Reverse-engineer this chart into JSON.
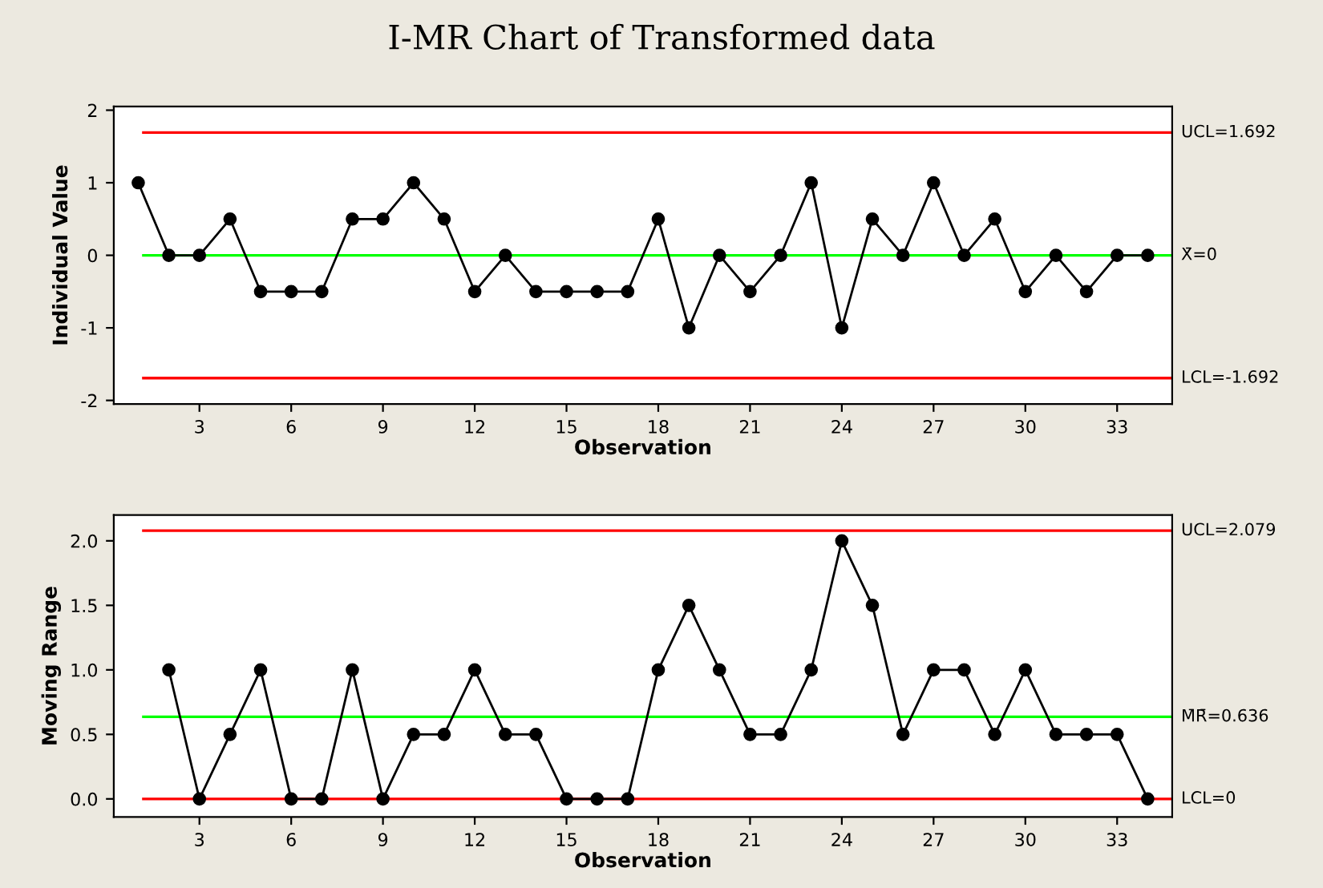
{
  "chart_data": [
    {
      "type": "line",
      "title": "I-MR Chart of Transformed data",
      "xlabel": "Observation",
      "ylabel": "Individual Value",
      "x": [
        1,
        2,
        3,
        4,
        5,
        6,
        7,
        8,
        9,
        10,
        11,
        12,
        13,
        14,
        15,
        16,
        17,
        18,
        19,
        20,
        21,
        22,
        23,
        24,
        25,
        26,
        27,
        28,
        29,
        30,
        31,
        32,
        33,
        34
      ],
      "series": [
        {
          "color": "#000000",
          "values": [
            1,
            0,
            0,
            0.5,
            -0.5,
            -0.5,
            -0.5,
            0.5,
            0.5,
            1,
            0.5,
            -0.5,
            0,
            -0.5,
            -0.5,
            -0.5,
            -0.5,
            0.5,
            -1,
            0,
            -0.5,
            0,
            1,
            -1,
            0.5,
            0,
            1,
            0,
            0.5,
            -0.5,
            0,
            -0.5,
            0,
            0
          ]
        }
      ],
      "marker": "circle",
      "line_style": "solid",
      "xlim": [
        0.2,
        34.8
      ],
      "xticks": [
        3,
        6,
        9,
        12,
        15,
        18,
        21,
        24,
        27,
        30,
        33
      ],
      "ylim": [
        -2.05,
        2.05
      ],
      "yticks": [
        -2,
        -1,
        0,
        1,
        2
      ],
      "ref_lines": [
        {
          "axis": "y",
          "value": 1.692,
          "label": "UCL=1.692",
          "color": "#ff0000"
        },
        {
          "axis": "y",
          "value": 0,
          "label": "X̄=0",
          "color": "#00ff00"
        },
        {
          "axis": "y",
          "value": -1.692,
          "label": "LCL=-1.692",
          "color": "#ff0000"
        }
      ],
      "grid": false,
      "legend": false
    },
    {
      "type": "line",
      "xlabel": "Observation",
      "ylabel": "Moving Range",
      "x": [
        2,
        3,
        4,
        5,
        6,
        7,
        8,
        9,
        10,
        11,
        12,
        13,
        14,
        15,
        16,
        17,
        18,
        19,
        20,
        21,
        22,
        23,
        24,
        25,
        26,
        27,
        28,
        29,
        30,
        31,
        32,
        33,
        34
      ],
      "series": [
        {
          "color": "#000000",
          "values": [
            1,
            0,
            0.5,
            1,
            0,
            0,
            1,
            0,
            0.5,
            0.5,
            1,
            0.5,
            0.5,
            0,
            0,
            0,
            1,
            1.5,
            1,
            0.5,
            0.5,
            1,
            2,
            1.5,
            0.5,
            1,
            1,
            0.5,
            1,
            0.5,
            0.5,
            0.5,
            0
          ]
        }
      ],
      "marker": "circle",
      "line_style": "solid",
      "xlim": [
        0.2,
        34.8
      ],
      "xticks": [
        3,
        6,
        9,
        12,
        15,
        18,
        21,
        24,
        27,
        30,
        33
      ],
      "ylim": [
        -0.14,
        2.2
      ],
      "yticks": [
        {
          "value": 0,
          "label": "0.0"
        },
        {
          "value": 0.5,
          "label": "0.5"
        },
        {
          "value": 1,
          "label": "1.0"
        },
        {
          "value": 1.5,
          "label": "1.5"
        },
        {
          "value": 2,
          "label": "2.0"
        }
      ],
      "ref_lines": [
        {
          "axis": "y",
          "value": 2.079,
          "label": "UCL=2.079",
          "color": "#ff0000"
        },
        {
          "axis": "y",
          "value": 0.636,
          "label": "M̄R̄=0.636",
          "color": "#00ff00"
        },
        {
          "axis": "y",
          "value": 0,
          "label": "LCL=0",
          "color": "#ff0000"
        }
      ],
      "grid": false,
      "legend": false
    }
  ]
}
